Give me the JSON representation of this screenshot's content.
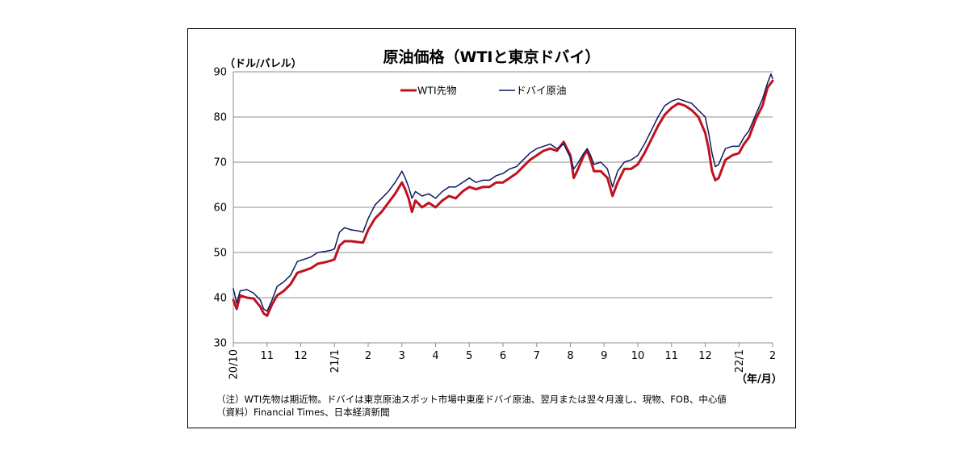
{
  "chart_data": {
    "type": "line",
    "title": "原油価格（WTIと東京ドバイ）",
    "ylabel": "（ドル/バレル）",
    "xlabel": "（年/月）",
    "ylim": [
      30,
      90
    ],
    "yticks": [
      30,
      40,
      50,
      60,
      70,
      80,
      90
    ],
    "xlim": [
      0,
      16
    ],
    "x_ticks": [
      {
        "x": 0,
        "label": "20/10",
        "rotated": true
      },
      {
        "x": 1,
        "label": "11",
        "rotated": false
      },
      {
        "x": 2,
        "label": "12",
        "rotated": false
      },
      {
        "x": 3,
        "label": "21/1",
        "rotated": true
      },
      {
        "x": 4,
        "label": "2",
        "rotated": false
      },
      {
        "x": 5,
        "label": "3",
        "rotated": false
      },
      {
        "x": 6,
        "label": "4",
        "rotated": false
      },
      {
        "x": 7,
        "label": "5",
        "rotated": false
      },
      {
        "x": 8,
        "label": "6",
        "rotated": false
      },
      {
        "x": 9,
        "label": "7",
        "rotated": false
      },
      {
        "x": 10,
        "label": "8",
        "rotated": false
      },
      {
        "x": 11,
        "label": "9",
        "rotated": false
      },
      {
        "x": 12,
        "label": "10",
        "rotated": false
      },
      {
        "x": 13,
        "label": "11",
        "rotated": false
      },
      {
        "x": 14,
        "label": "12",
        "rotated": false
      },
      {
        "x": 15,
        "label": "22/1",
        "rotated": true
      },
      {
        "x": 16,
        "label": "2",
        "rotated": false
      }
    ],
    "legend": "top-center",
    "series": [
      {
        "name": "WTI先物",
        "color": "#c0111f",
        "points": [
          [
            0.0,
            39.5
          ],
          [
            0.1,
            37.5
          ],
          [
            0.2,
            40.5
          ],
          [
            0.4,
            40.0
          ],
          [
            0.6,
            39.8
          ],
          [
            0.8,
            38.0
          ],
          [
            0.9,
            36.5
          ],
          [
            1.0,
            36.0
          ],
          [
            1.15,
            38.5
          ],
          [
            1.3,
            40.5
          ],
          [
            1.5,
            41.5
          ],
          [
            1.7,
            43.0
          ],
          [
            1.9,
            45.5
          ],
          [
            2.1,
            46.0
          ],
          [
            2.3,
            46.5
          ],
          [
            2.5,
            47.5
          ],
          [
            2.7,
            47.8
          ],
          [
            2.9,
            48.2
          ],
          [
            3.0,
            48.5
          ],
          [
            3.15,
            51.5
          ],
          [
            3.3,
            52.5
          ],
          [
            3.5,
            52.5
          ],
          [
            3.7,
            52.3
          ],
          [
            3.85,
            52.2
          ],
          [
            4.0,
            55.0
          ],
          [
            4.2,
            57.5
          ],
          [
            4.4,
            59.0
          ],
          [
            4.6,
            61.0
          ],
          [
            4.8,
            63.0
          ],
          [
            5.0,
            65.5
          ],
          [
            5.1,
            64.0
          ],
          [
            5.2,
            62.0
          ],
          [
            5.3,
            59.0
          ],
          [
            5.4,
            61.5
          ],
          [
            5.6,
            60.0
          ],
          [
            5.8,
            61.0
          ],
          [
            6.0,
            60.0
          ],
          [
            6.2,
            61.5
          ],
          [
            6.4,
            62.5
          ],
          [
            6.6,
            62.0
          ],
          [
            6.8,
            63.5
          ],
          [
            7.0,
            64.5
          ],
          [
            7.2,
            64.0
          ],
          [
            7.4,
            64.5
          ],
          [
            7.6,
            64.5
          ],
          [
            7.8,
            65.5
          ],
          [
            8.0,
            65.5
          ],
          [
            8.2,
            66.5
          ],
          [
            8.4,
            67.5
          ],
          [
            8.6,
            69.0
          ],
          [
            8.8,
            70.5
          ],
          [
            9.0,
            71.5
          ],
          [
            9.2,
            72.5
          ],
          [
            9.4,
            73.0
          ],
          [
            9.6,
            72.5
          ],
          [
            9.8,
            74.5
          ],
          [
            9.9,
            73.0
          ],
          [
            10.0,
            71.5
          ],
          [
            10.1,
            66.5
          ],
          [
            10.2,
            68.0
          ],
          [
            10.4,
            71.5
          ],
          [
            10.5,
            72.5
          ],
          [
            10.6,
            70.5
          ],
          [
            10.7,
            68.0
          ],
          [
            10.9,
            68.0
          ],
          [
            11.1,
            66.5
          ],
          [
            11.25,
            62.5
          ],
          [
            11.4,
            65.5
          ],
          [
            11.6,
            68.5
          ],
          [
            11.8,
            68.5
          ],
          [
            12.0,
            69.5
          ],
          [
            12.2,
            72.0
          ],
          [
            12.4,
            75.0
          ],
          [
            12.6,
            78.0
          ],
          [
            12.8,
            80.5
          ],
          [
            13.0,
            82.0
          ],
          [
            13.2,
            83.0
          ],
          [
            13.4,
            82.5
          ],
          [
            13.6,
            81.5
          ],
          [
            13.8,
            80.0
          ],
          [
            14.0,
            76.5
          ],
          [
            14.1,
            73.0
          ],
          [
            14.2,
            68.0
          ],
          [
            14.3,
            66.0
          ],
          [
            14.4,
            66.5
          ],
          [
            14.6,
            70.5
          ],
          [
            14.8,
            71.5
          ],
          [
            15.0,
            72.0
          ],
          [
            15.15,
            74.0
          ],
          [
            15.3,
            75.5
          ],
          [
            15.5,
            79.5
          ],
          [
            15.7,
            82.5
          ],
          [
            15.85,
            86.5
          ],
          [
            16.0,
            88.0
          ]
        ]
      },
      {
        "name": "ドバイ原油",
        "color": "#0d1c5e",
        "points": [
          [
            0.0,
            42.0
          ],
          [
            0.1,
            38.8
          ],
          [
            0.2,
            41.5
          ],
          [
            0.4,
            41.8
          ],
          [
            0.6,
            41.0
          ],
          [
            0.8,
            39.5
          ],
          [
            0.9,
            37.5
          ],
          [
            1.0,
            37.0
          ],
          [
            1.15,
            39.5
          ],
          [
            1.3,
            42.5
          ],
          [
            1.5,
            43.5
          ],
          [
            1.7,
            45.0
          ],
          [
            1.9,
            48.0
          ],
          [
            2.1,
            48.5
          ],
          [
            2.3,
            49.0
          ],
          [
            2.5,
            50.0
          ],
          [
            2.7,
            50.2
          ],
          [
            2.9,
            50.5
          ],
          [
            3.0,
            50.8
          ],
          [
            3.15,
            54.5
          ],
          [
            3.3,
            55.5
          ],
          [
            3.5,
            55.0
          ],
          [
            3.7,
            54.8
          ],
          [
            3.85,
            54.5
          ],
          [
            4.0,
            57.5
          ],
          [
            4.2,
            60.5
          ],
          [
            4.4,
            62.0
          ],
          [
            4.6,
            63.5
          ],
          [
            4.8,
            65.5
          ],
          [
            5.0,
            68.0
          ],
          [
            5.1,
            66.5
          ],
          [
            5.2,
            64.5
          ],
          [
            5.3,
            62.0
          ],
          [
            5.4,
            63.5
          ],
          [
            5.6,
            62.5
          ],
          [
            5.8,
            63.0
          ],
          [
            6.0,
            62.0
          ],
          [
            6.2,
            63.5
          ],
          [
            6.4,
            64.5
          ],
          [
            6.6,
            64.5
          ],
          [
            6.8,
            65.5
          ],
          [
            7.0,
            66.5
          ],
          [
            7.2,
            65.5
          ],
          [
            7.4,
            66.0
          ],
          [
            7.6,
            66.0
          ],
          [
            7.8,
            67.0
          ],
          [
            8.0,
            67.5
          ],
          [
            8.2,
            68.5
          ],
          [
            8.4,
            69.0
          ],
          [
            8.6,
            70.5
          ],
          [
            8.8,
            72.0
          ],
          [
            9.0,
            73.0
          ],
          [
            9.2,
            73.5
          ],
          [
            9.4,
            74.0
          ],
          [
            9.6,
            73.0
          ],
          [
            9.8,
            74.0
          ],
          [
            9.9,
            72.5
          ],
          [
            10.0,
            71.0
          ],
          [
            10.1,
            68.5
          ],
          [
            10.2,
            69.5
          ],
          [
            10.4,
            72.0
          ],
          [
            10.5,
            73.0
          ],
          [
            10.6,
            71.5
          ],
          [
            10.7,
            69.5
          ],
          [
            10.9,
            70.0
          ],
          [
            11.1,
            68.5
          ],
          [
            11.25,
            64.5
          ],
          [
            11.4,
            68.0
          ],
          [
            11.6,
            70.0
          ],
          [
            11.8,
            70.5
          ],
          [
            12.0,
            71.5
          ],
          [
            12.2,
            74.0
          ],
          [
            12.4,
            77.0
          ],
          [
            12.6,
            80.0
          ],
          [
            12.8,
            82.5
          ],
          [
            13.0,
            83.5
          ],
          [
            13.2,
            84.0
          ],
          [
            13.4,
            83.5
          ],
          [
            13.6,
            83.0
          ],
          [
            13.8,
            81.5
          ],
          [
            14.0,
            80.0
          ],
          [
            14.1,
            76.5
          ],
          [
            14.2,
            72.0
          ],
          [
            14.3,
            69.0
          ],
          [
            14.4,
            69.5
          ],
          [
            14.6,
            73.0
          ],
          [
            14.8,
            73.5
          ],
          [
            15.0,
            73.5
          ],
          [
            15.15,
            75.5
          ],
          [
            15.3,
            77.0
          ],
          [
            15.5,
            80.5
          ],
          [
            15.7,
            84.0
          ],
          [
            15.85,
            87.5
          ],
          [
            15.95,
            89.5
          ],
          [
            16.0,
            88.5
          ]
        ]
      }
    ]
  },
  "notes": {
    "line1": "（注）WTI先物は期近物。ドバイは東京原油スポット市場中東産ドバイ原油、翌月または翌々月渡し、現物、FOB、中心値",
    "line2": "（資料）Financial Times、日本経済新聞"
  }
}
